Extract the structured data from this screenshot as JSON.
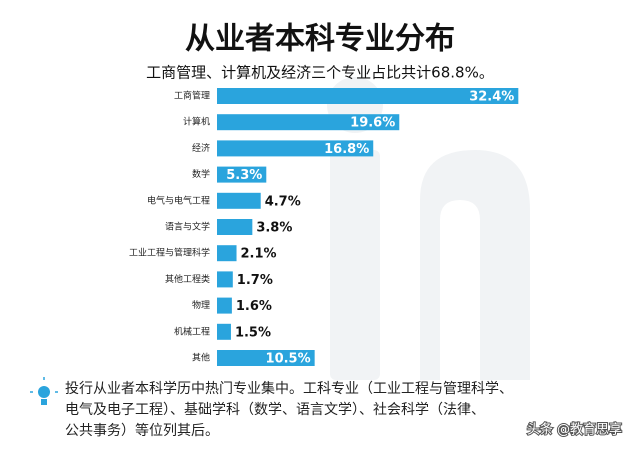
{
  "chart_data": {
    "type": "hbar",
    "title": "从业者本科专业分布",
    "subtitle": "工商管理、计算机及经济三个专业占比共计68.8%。",
    "categories": [
      "工商管理",
      "计算机",
      "经济",
      "数学",
      "电气与电气工程",
      "语言与文学",
      "工业工程与管理科学",
      "其他工程类",
      "物理",
      "机械工程",
      "其他"
    ],
    "values": [
      32.4,
      19.6,
      16.8,
      5.3,
      4.7,
      3.8,
      2.1,
      1.7,
      1.6,
      1.5,
      10.5
    ],
    "value_labels": [
      "32.4%",
      "19.6%",
      "16.8%",
      "5.3%",
      "4.7%",
      "3.8%",
      "2.1%",
      "1.7%",
      "1.6%",
      "1.5%",
      "10.5%"
    ],
    "color": "#2aa4dd",
    "note": [
      "投行从业者本科学历中热门专业集中。工科专业（工业工程与管理科学、",
      "电气及电子工程）、基础学科（数学、语言文学）、社会科学（法律、",
      "公共事务）等位列其后。"
    ],
    "watermark": "头条 @教育思享"
  }
}
